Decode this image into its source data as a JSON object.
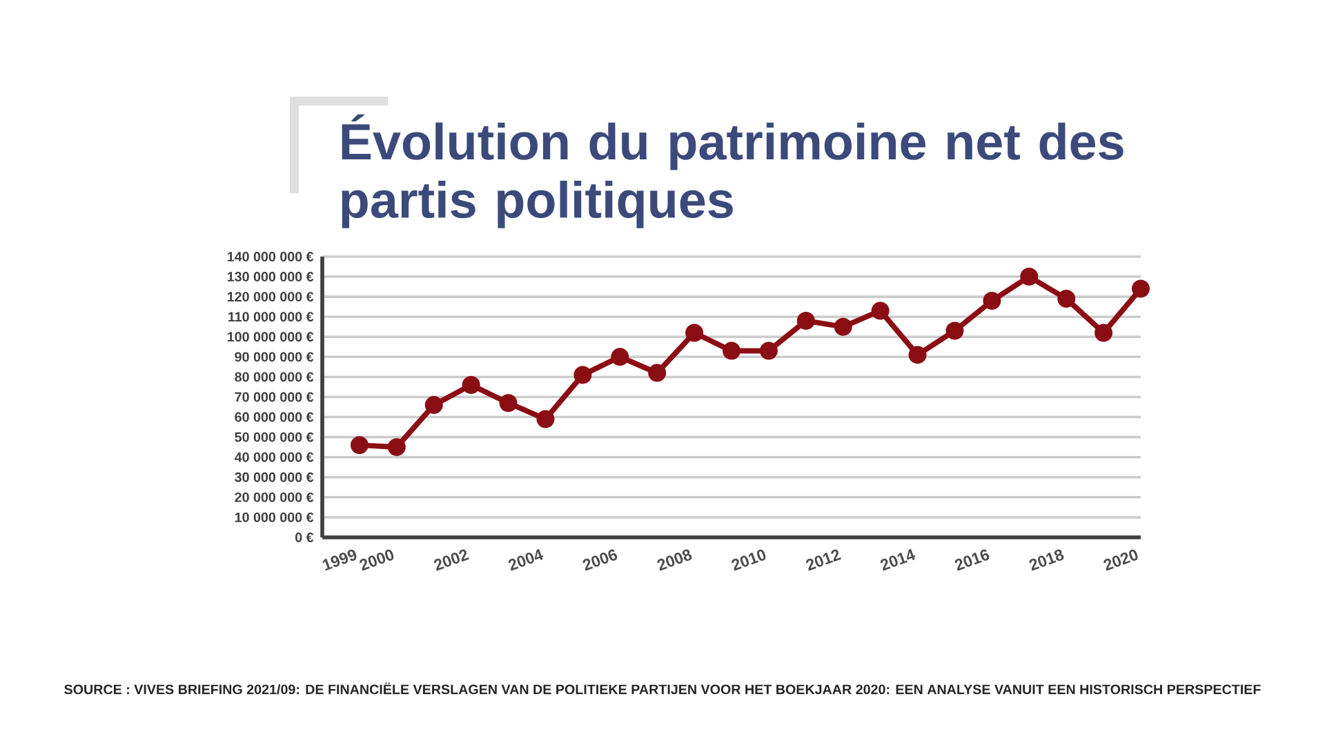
{
  "chart_data": {
    "type": "line",
    "title": "Évolution du patrimoine net des partis politiques",
    "categories": [
      "1999",
      "2000",
      null,
      "2002",
      null,
      "2004",
      null,
      "2006",
      null,
      "2008",
      null,
      "2010",
      null,
      "2012",
      null,
      "2014",
      null,
      "2016",
      null,
      "2018",
      null,
      "2020"
    ],
    "series": [
      {
        "color": "#8b0d14",
        "values": [
          46000000,
          45000000,
          66000000,
          76000000,
          67000000,
          59000000,
          81000000,
          90000000,
          82000000,
          102000000,
          93000000,
          93000000,
          108000000,
          105000000,
          113000000,
          91000000,
          103000000,
          118000000,
          130000000,
          119000000,
          102000000,
          124000000
        ]
      }
    ],
    "ylim": [
      0,
      140000000
    ],
    "yticks": [
      {
        "value": 0,
        "label": "0 €"
      },
      {
        "value": 10000000,
        "label": "10 000 000 €"
      },
      {
        "value": 20000000,
        "label": "20 000 000 €"
      },
      {
        "value": 30000000,
        "label": "30 000 000 €"
      },
      {
        "value": 40000000,
        "label": "40 000 000 €"
      },
      {
        "value": 50000000,
        "label": "50 000 000 €"
      },
      {
        "value": 60000000,
        "label": "60 000 000 €"
      },
      {
        "value": 70000000,
        "label": "70 000 000 €"
      },
      {
        "value": 80000000,
        "label": "80 000 000 €"
      },
      {
        "value": 90000000,
        "label": "90 000 000 €"
      },
      {
        "value": 100000000,
        "label": "100 000 000 €"
      },
      {
        "value": 110000000,
        "label": "110 000 000 €"
      },
      {
        "value": 120000000,
        "label": "120 000 000 €"
      },
      {
        "value": 130000000,
        "label": "130 000 000 €"
      },
      {
        "value": 140000000,
        "label": "140 000 000 €"
      }
    ],
    "grid": "y",
    "marker": "circle",
    "line_style": "solid",
    "annotations": [
      "SOURCE : VIVES BRIEFING 2021/09: DE FINANCIËLE VERSLAGEN VAN DE POLITIEKE PARTIJEN VOOR HET BOEKJAAR 2020: EEN ANALYSE VANUIT EEN HISTORISCH PERSPECTIEF"
    ]
  }
}
